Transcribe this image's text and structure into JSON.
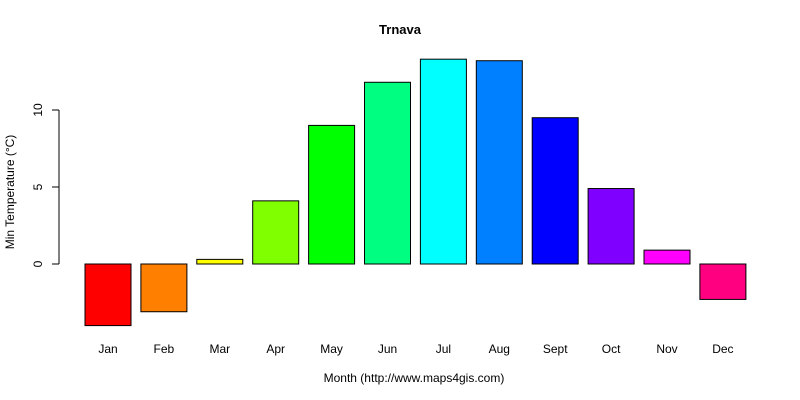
{
  "chart_data": {
    "type": "bar",
    "title": "Trnava",
    "xlabel": "Month (http://www.maps4gis.com)",
    "ylabel": "Min Temperature (°C)",
    "categories": [
      "Jan",
      "Feb",
      "Mar",
      "Apr",
      "May",
      "Jun",
      "Jul",
      "Aug",
      "Sept",
      "Oct",
      "Nov",
      "Dec"
    ],
    "values": [
      -4.0,
      -3.1,
      0.3,
      4.1,
      9.0,
      11.8,
      13.3,
      13.2,
      9.5,
      4.9,
      0.9,
      -2.3
    ],
    "colors": [
      "#FF0000",
      "#FF8000",
      "#FFFF00",
      "#80FF00",
      "#00FF00",
      "#00FF80",
      "#00FFFF",
      "#0080FF",
      "#0000FF",
      "#8000FF",
      "#FF00FF",
      "#FF0080"
    ],
    "yticks": [
      0,
      5,
      10
    ],
    "ylim": [
      -4.5,
      13.5
    ],
    "grid": false,
    "legend": null
  }
}
